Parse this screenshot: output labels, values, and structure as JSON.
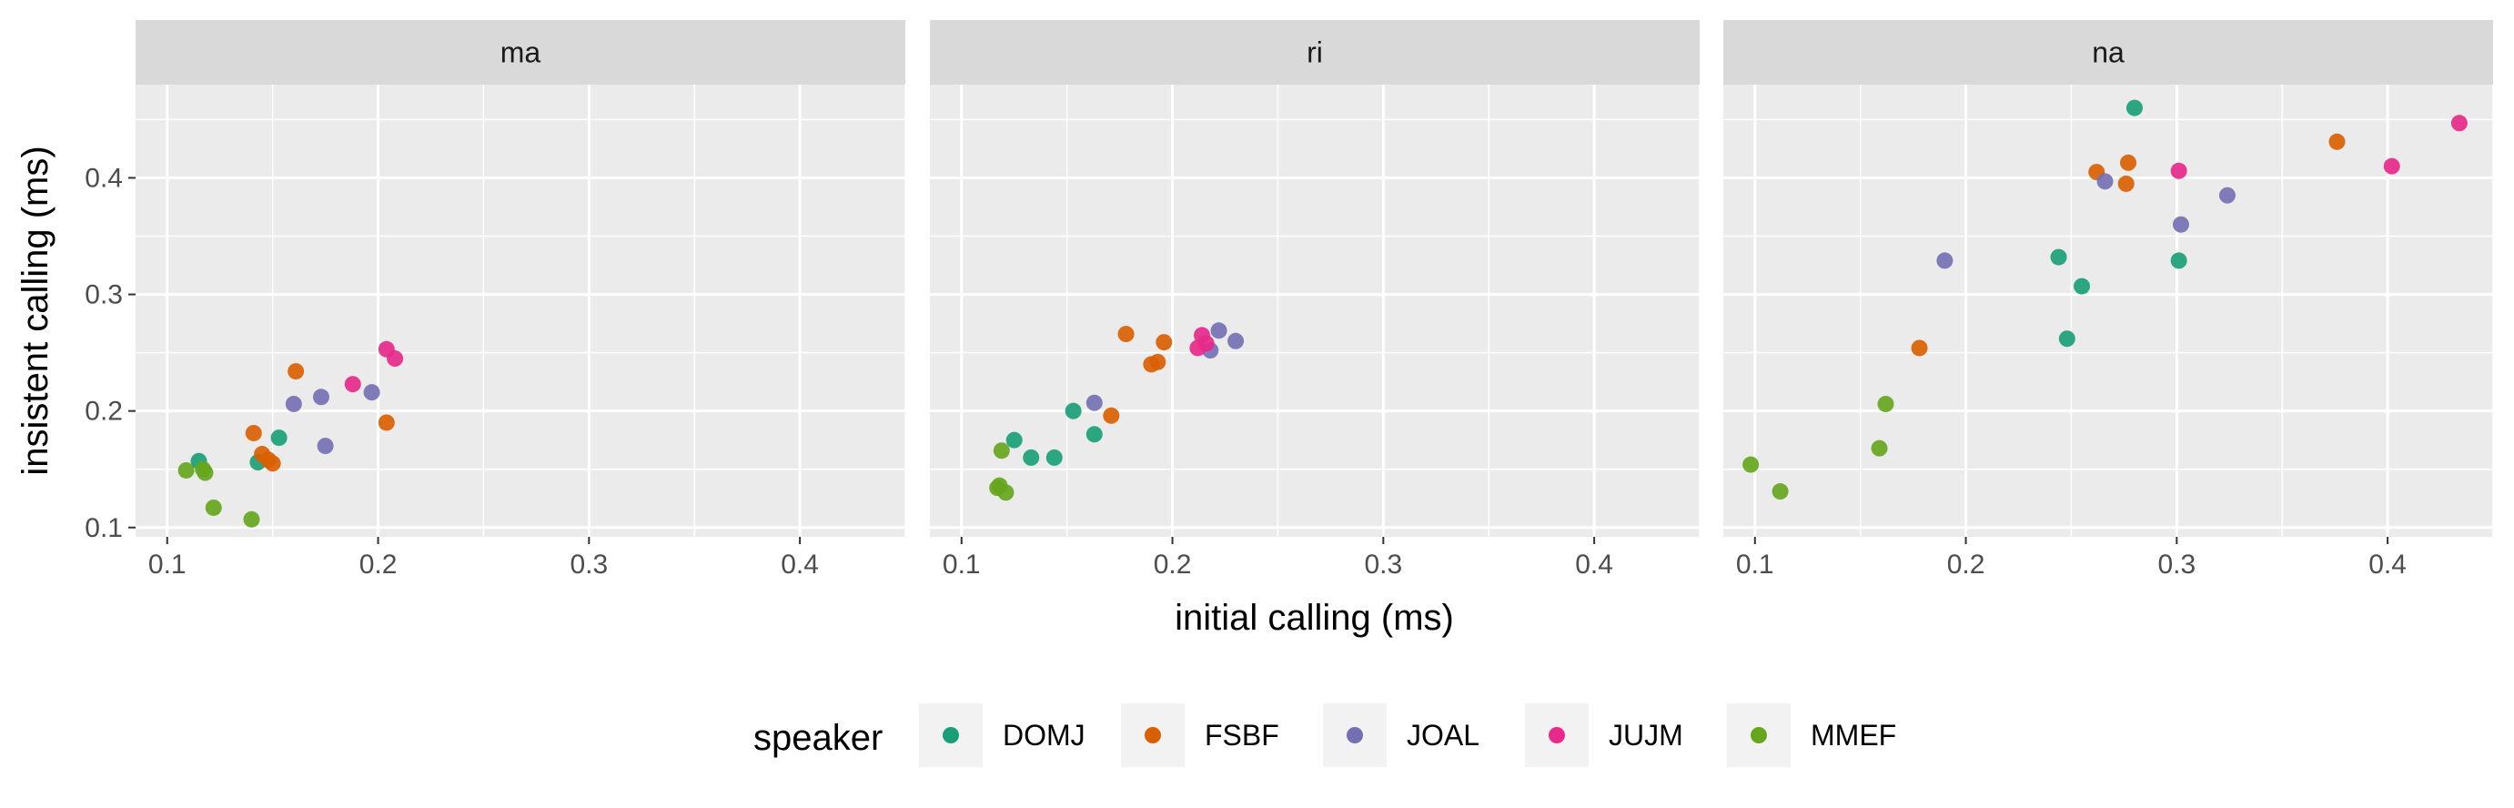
{
  "chart_data": {
    "type": "scatter",
    "xlabel": "initial calling (ms)",
    "ylabel": "insistent calling (ms)",
    "xlim": [
      0.085,
      0.45
    ],
    "ylim": [
      0.092,
      0.48
    ],
    "x_ticks": [
      0.1,
      0.2,
      0.3,
      0.4
    ],
    "x_tick_labels": [
      "0.1",
      "0.2",
      "0.3",
      "0.4"
    ],
    "y_ticks": [
      0.1,
      0.2,
      0.3,
      0.4
    ],
    "y_tick_labels": [
      "0.1",
      "0.2",
      "0.3",
      "0.4"
    ],
    "grid": true,
    "legend": {
      "title": "speaker",
      "position": "bottom",
      "entries": [
        {
          "name": "DOMJ",
          "color": "#1b9e77"
        },
        {
          "name": "FSBF",
          "color": "#d95f02"
        },
        {
          "name": "JOAL",
          "color": "#7570b3"
        },
        {
          "name": "JUJM",
          "color": "#e7298a"
        },
        {
          "name": "MMEF",
          "color": "#66a61e"
        }
      ]
    },
    "facets": [
      {
        "label": "ma",
        "points": [
          {
            "speaker": "DOMJ",
            "x": 0.115,
            "y": 0.157
          },
          {
            "speaker": "DOMJ",
            "x": 0.143,
            "y": 0.156
          },
          {
            "speaker": "DOMJ",
            "x": 0.153,
            "y": 0.177
          },
          {
            "speaker": "FSBF",
            "x": 0.141,
            "y": 0.181
          },
          {
            "speaker": "FSBF",
            "x": 0.145,
            "y": 0.163
          },
          {
            "speaker": "FSBF",
            "x": 0.148,
            "y": 0.158
          },
          {
            "speaker": "FSBF",
            "x": 0.15,
            "y": 0.155
          },
          {
            "speaker": "FSBF",
            "x": 0.161,
            "y": 0.234
          },
          {
            "speaker": "FSBF",
            "x": 0.204,
            "y": 0.19
          },
          {
            "speaker": "JOAL",
            "x": 0.16,
            "y": 0.206
          },
          {
            "speaker": "JOAL",
            "x": 0.173,
            "y": 0.212
          },
          {
            "speaker": "JOAL",
            "x": 0.175,
            "y": 0.17
          },
          {
            "speaker": "JOAL",
            "x": 0.197,
            "y": 0.216
          },
          {
            "speaker": "JUJM",
            "x": 0.188,
            "y": 0.223
          },
          {
            "speaker": "JUJM",
            "x": 0.204,
            "y": 0.253
          },
          {
            "speaker": "JUJM",
            "x": 0.208,
            "y": 0.245
          },
          {
            "speaker": "MMEF",
            "x": 0.109,
            "y": 0.149
          },
          {
            "speaker": "MMEF",
            "x": 0.117,
            "y": 0.15
          },
          {
            "speaker": "MMEF",
            "x": 0.118,
            "y": 0.147
          },
          {
            "speaker": "MMEF",
            "x": 0.122,
            "y": 0.117
          },
          {
            "speaker": "MMEF",
            "x": 0.14,
            "y": 0.107
          }
        ]
      },
      {
        "label": "ri",
        "points": [
          {
            "speaker": "DOMJ",
            "x": 0.125,
            "y": 0.175
          },
          {
            "speaker": "DOMJ",
            "x": 0.133,
            "y": 0.16
          },
          {
            "speaker": "DOMJ",
            "x": 0.144,
            "y": 0.16
          },
          {
            "speaker": "DOMJ",
            "x": 0.153,
            "y": 0.2
          },
          {
            "speaker": "DOMJ",
            "x": 0.163,
            "y": 0.18
          },
          {
            "speaker": "FSBF",
            "x": 0.171,
            "y": 0.196
          },
          {
            "speaker": "FSBF",
            "x": 0.178,
            "y": 0.266
          },
          {
            "speaker": "FSBF",
            "x": 0.19,
            "y": 0.24
          },
          {
            "speaker": "FSBF",
            "x": 0.193,
            "y": 0.242
          },
          {
            "speaker": "FSBF",
            "x": 0.196,
            "y": 0.259
          },
          {
            "speaker": "JOAL",
            "x": 0.163,
            "y": 0.207
          },
          {
            "speaker": "JOAL",
            "x": 0.218,
            "y": 0.252
          },
          {
            "speaker": "JOAL",
            "x": 0.222,
            "y": 0.269
          },
          {
            "speaker": "JOAL",
            "x": 0.23,
            "y": 0.26
          },
          {
            "speaker": "JUJM",
            "x": 0.212,
            "y": 0.254
          },
          {
            "speaker": "JUJM",
            "x": 0.214,
            "y": 0.265
          },
          {
            "speaker": "JUJM",
            "x": 0.216,
            "y": 0.258
          },
          {
            "speaker": "MMEF",
            "x": 0.117,
            "y": 0.134
          },
          {
            "speaker": "MMEF",
            "x": 0.118,
            "y": 0.136
          },
          {
            "speaker": "MMEF",
            "x": 0.119,
            "y": 0.166
          },
          {
            "speaker": "MMEF",
            "x": 0.121,
            "y": 0.13
          }
        ]
      },
      {
        "label": "na",
        "points": [
          {
            "speaker": "DOMJ",
            "x": 0.244,
            "y": 0.332
          },
          {
            "speaker": "DOMJ",
            "x": 0.248,
            "y": 0.262
          },
          {
            "speaker": "DOMJ",
            "x": 0.255,
            "y": 0.307
          },
          {
            "speaker": "DOMJ",
            "x": 0.28,
            "y": 0.46
          },
          {
            "speaker": "DOMJ",
            "x": 0.301,
            "y": 0.329
          },
          {
            "speaker": "FSBF",
            "x": 0.178,
            "y": 0.254
          },
          {
            "speaker": "FSBF",
            "x": 0.262,
            "y": 0.405
          },
          {
            "speaker": "FSBF",
            "x": 0.276,
            "y": 0.395
          },
          {
            "speaker": "FSBF",
            "x": 0.277,
            "y": 0.413
          },
          {
            "speaker": "FSBF",
            "x": 0.376,
            "y": 0.431
          },
          {
            "speaker": "JOAL",
            "x": 0.19,
            "y": 0.329
          },
          {
            "speaker": "JOAL",
            "x": 0.266,
            "y": 0.397
          },
          {
            "speaker": "JOAL",
            "x": 0.302,
            "y": 0.36
          },
          {
            "speaker": "JOAL",
            "x": 0.324,
            "y": 0.385
          },
          {
            "speaker": "JUJM",
            "x": 0.301,
            "y": 0.406
          },
          {
            "speaker": "JUJM",
            "x": 0.402,
            "y": 0.41
          },
          {
            "speaker": "JUJM",
            "x": 0.434,
            "y": 0.447
          },
          {
            "speaker": "MMEF",
            "x": 0.098,
            "y": 0.154
          },
          {
            "speaker": "MMEF",
            "x": 0.112,
            "y": 0.131
          },
          {
            "speaker": "MMEF",
            "x": 0.159,
            "y": 0.168
          },
          {
            "speaker": "MMEF",
            "x": 0.162,
            "y": 0.206
          }
        ]
      }
    ]
  }
}
